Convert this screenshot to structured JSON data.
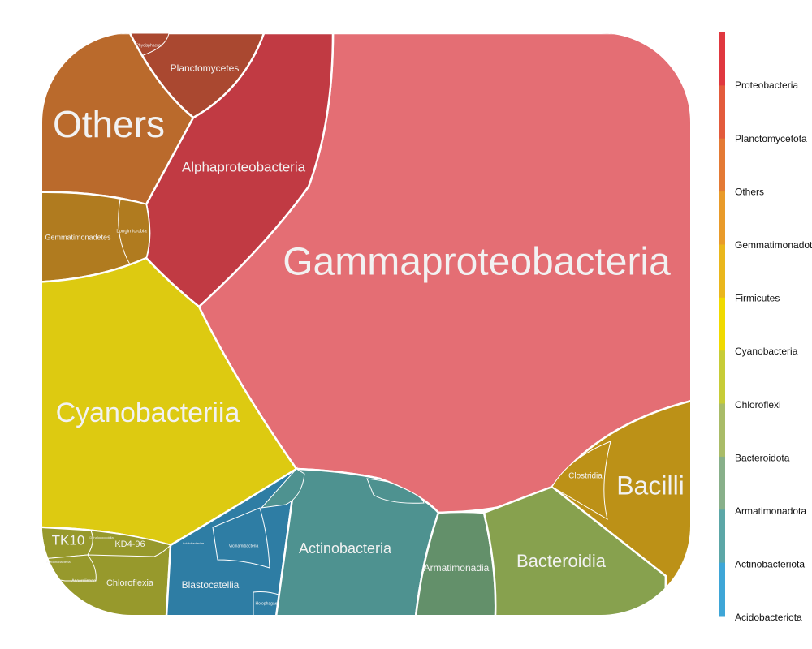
{
  "chart_data": {
    "type": "treemap",
    "cells": [
      {
        "label": "Gammaproteobacteria",
        "phylum": "Proteobacteria",
        "color": "#E46E74"
      },
      {
        "label": "Alphaproteobacteria",
        "phylum": "Proteobacteria",
        "color": "#C13A43"
      },
      {
        "label": "Planctomycetes",
        "phylum": "Planctomycetota",
        "color": "#AA4830"
      },
      {
        "label": "Phycisphaerae",
        "phylum": "Planctomycetota",
        "color": "#AA4830"
      },
      {
        "label": "Others",
        "phylum": "Others",
        "color": "#BA6A2C"
      },
      {
        "label": "Gemmatimonadetes",
        "phylum": "Gemmatimonadota",
        "color": "#B07B1F"
      },
      {
        "label": "Longimicrobia",
        "phylum": "Gemmatimonadota",
        "color": "#B07B1F"
      },
      {
        "label": "Cyanobacteriia",
        "phylum": "Cyanobacteria",
        "color": "#DDCA11"
      },
      {
        "label": "Bacilli",
        "phylum": "Firmicutes",
        "color": "#BC9117"
      },
      {
        "label": "Clostridia",
        "phylum": "Firmicutes",
        "color": "#BC9117"
      },
      {
        "label": "Bacteroidia",
        "phylum": "Bacteroidota",
        "color": "#87A14E"
      },
      {
        "label": "Armatimonadia",
        "phylum": "Armatimonadota",
        "color": "#63906A"
      },
      {
        "label": "Actinobacteria",
        "phylum": "Actinobacteriota",
        "color": "#4E9290"
      },
      {
        "label": "Blastocatellia",
        "phylum": "Acidobacteriota",
        "color": "#2E7DA4"
      },
      {
        "label": "Vicinamibacteria",
        "phylum": "Acidobacteriota",
        "color": "#2E7DA4"
      },
      {
        "label": "Acidobacteriae",
        "phylum": "Acidobacteriota",
        "color": "#2E7DA4"
      },
      {
        "label": "Holophagae",
        "phylum": "Acidobacteriota",
        "color": "#2E7DA4"
      },
      {
        "label": "Chloroflexia",
        "phylum": "Chloroflexi",
        "color": "#97992C"
      },
      {
        "label": "KD4-96",
        "phylum": "Chloroflexi",
        "color": "#97992C"
      },
      {
        "label": "TK10",
        "phylum": "Chloroflexi",
        "color": "#97992C"
      },
      {
        "label": "Anaerolineae",
        "phylum": "Chloroflexi",
        "color": "#97992C"
      },
      {
        "label": "Dehalococcoidia",
        "phylum": "Chloroflexi",
        "color": "#97992C"
      },
      {
        "label": "Ktedonobacteria",
        "phylum": "Chloroflexi",
        "color": "#97992C"
      }
    ],
    "legend": {
      "position": "right",
      "entries": [
        "Proteobacteria",
        "Planctomycetota",
        "Others",
        "Gemmatimonadota",
        "Firmicutes",
        "Cyanobacteria",
        "Chloroflexi",
        "Bacteroidota",
        "Armatimonadota",
        "Actinobacteriota",
        "Acidobacteriota"
      ],
      "colors": [
        "#E0383F",
        "#E35B3C",
        "#E47A35",
        "#E99B2A",
        "#EAB71C",
        "#F0DA00",
        "#C7CC37",
        "#A9BC68",
        "#88B08A",
        "#5CA7A7",
        "#3EA6D7"
      ]
    }
  }
}
